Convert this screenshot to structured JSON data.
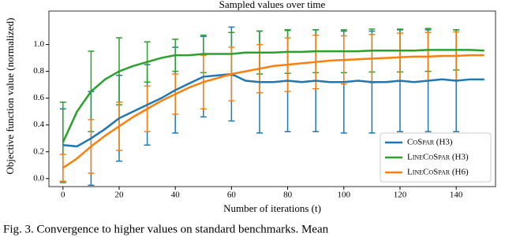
{
  "chart_data": {
    "type": "line",
    "title": "Sampled values over time",
    "xlabel": "Number of iterations (t)",
    "ylabel": "Objective function value (normalized)",
    "caption": "Fig. 3.  Convergence to higher values on standard benchmarks. Mean",
    "x": [
      0,
      5,
      10,
      15,
      20,
      25,
      30,
      35,
      40,
      45,
      50,
      55,
      60,
      65,
      70,
      75,
      80,
      85,
      90,
      95,
      100,
      105,
      110,
      115,
      120,
      125,
      130,
      135,
      140,
      145,
      150
    ],
    "xlim": [
      -5,
      154
    ],
    "ylim": [
      -0.06,
      1.25
    ],
    "xticks": [
      0,
      20,
      40,
      60,
      80,
      100,
      120,
      140
    ],
    "yticks": [
      {
        "value": 0,
        "label": "0.0"
      },
      {
        "value": 0.2,
        "label": "0.2"
      },
      {
        "value": 0.4,
        "label": "0.4"
      },
      {
        "value": 0.6,
        "label": "0.6"
      },
      {
        "value": 0.8,
        "label": "0.8"
      },
      {
        "value": 1,
        "label": "1.0"
      }
    ],
    "legend_position": "lower right",
    "series": [
      {
        "name": "CoSpar (H3)",
        "color": "#1f77b4",
        "values": [
          0.25,
          0.24,
          0.3,
          0.37,
          0.45,
          0.5,
          0.55,
          0.6,
          0.66,
          0.71,
          0.76,
          0.77,
          0.78,
          0.73,
          0.72,
          0.72,
          0.73,
          0.72,
          0.73,
          0.72,
          0.72,
          0.73,
          0.72,
          0.72,
          0.73,
          0.72,
          0.73,
          0.74,
          0.73,
          0.74,
          0.74
        ],
        "errors": [
          0.27,
          null,
          0.35,
          null,
          0.32,
          null,
          0.3,
          null,
          0.32,
          null,
          0.3,
          null,
          0.35,
          null,
          0.38,
          null,
          0.38,
          null,
          0.38,
          null,
          0.38,
          null,
          0.38,
          null,
          0.38,
          null,
          0.38,
          null,
          0.38,
          null,
          null
        ]
      },
      {
        "name": "LineCoSpar (H3)",
        "color": "#2ca02c",
        "values": [
          0.27,
          0.5,
          0.65,
          0.74,
          0.8,
          0.84,
          0.87,
          0.9,
          0.92,
          0.92,
          0.93,
          0.93,
          0.93,
          0.94,
          0.94,
          0.94,
          0.945,
          0.945,
          0.95,
          0.95,
          0.95,
          0.95,
          0.955,
          0.955,
          0.955,
          0.955,
          0.96,
          0.96,
          0.96,
          0.96,
          0.955
        ],
        "errors": [
          0.3,
          null,
          0.3,
          null,
          0.25,
          null,
          0.15,
          null,
          0.12,
          null,
          0.14,
          null,
          0.16,
          null,
          0.16,
          null,
          0.16,
          null,
          0.16,
          null,
          0.16,
          null,
          0.16,
          null,
          0.16,
          null,
          0.16,
          null,
          0.15,
          null,
          null
        ]
      },
      {
        "name": "LineCoSpar (H6)",
        "color": "#ff7f0e",
        "values": [
          0.08,
          0.15,
          0.24,
          0.32,
          0.39,
          0.46,
          0.52,
          0.58,
          0.63,
          0.68,
          0.72,
          0.75,
          0.78,
          0.8,
          0.82,
          0.84,
          0.85,
          0.86,
          0.87,
          0.88,
          0.885,
          0.89,
          0.895,
          0.9,
          0.905,
          0.91,
          0.91,
          0.915,
          0.915,
          0.92,
          0.92
        ],
        "errors": [
          0.1,
          null,
          0.2,
          null,
          0.18,
          null,
          0.17,
          null,
          0.15,
          null,
          0.2,
          null,
          0.2,
          null,
          0.18,
          null,
          0.2,
          null,
          0.2,
          null,
          0.18,
          null,
          0.18,
          null,
          0.18,
          null,
          0.18,
          null,
          0.18,
          null,
          null
        ]
      }
    ]
  }
}
